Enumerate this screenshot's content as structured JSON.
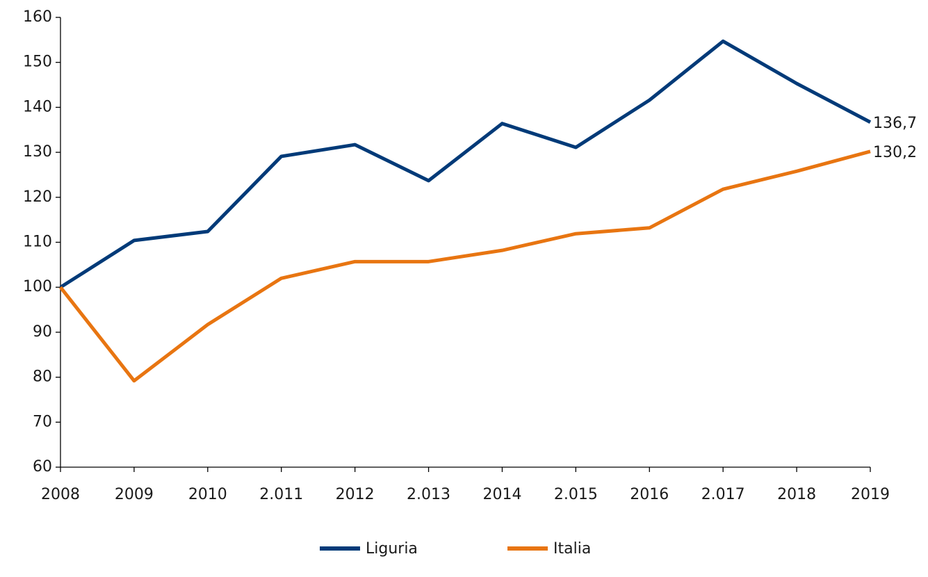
{
  "chart_data": {
    "type": "line",
    "categories": [
      "2008",
      "2009",
      "2010",
      "2.011",
      "2012",
      "2.013",
      "2014",
      "2.015",
      "2016",
      "2.017",
      "2018",
      "2019"
    ],
    "series": [
      {
        "name": "Liguria",
        "color": "#003a78",
        "values": [
          100,
          110.4,
          112.4,
          129.1,
          131.7,
          123.7,
          136.4,
          131.1,
          141.6,
          154.7,
          145.3,
          136.7
        ],
        "value_labels": [
          null,
          null,
          null,
          null,
          null,
          null,
          null,
          null,
          null,
          null,
          null,
          "136,7"
        ]
      },
      {
        "name": "Italia",
        "color": "#e87511",
        "values": [
          100,
          79.2,
          91.7,
          102.0,
          105.7,
          105.7,
          108.2,
          111.9,
          113.2,
          121.8,
          125.8,
          130.2
        ],
        "value_labels": [
          null,
          null,
          null,
          null,
          null,
          null,
          null,
          null,
          null,
          null,
          null,
          "130,2"
        ]
      }
    ],
    "ylim": [
      60,
      160
    ],
    "yticks": [
      60,
      70,
      80,
      90,
      100,
      110,
      120,
      130,
      140,
      150,
      160
    ],
    "legend": "bottom"
  }
}
